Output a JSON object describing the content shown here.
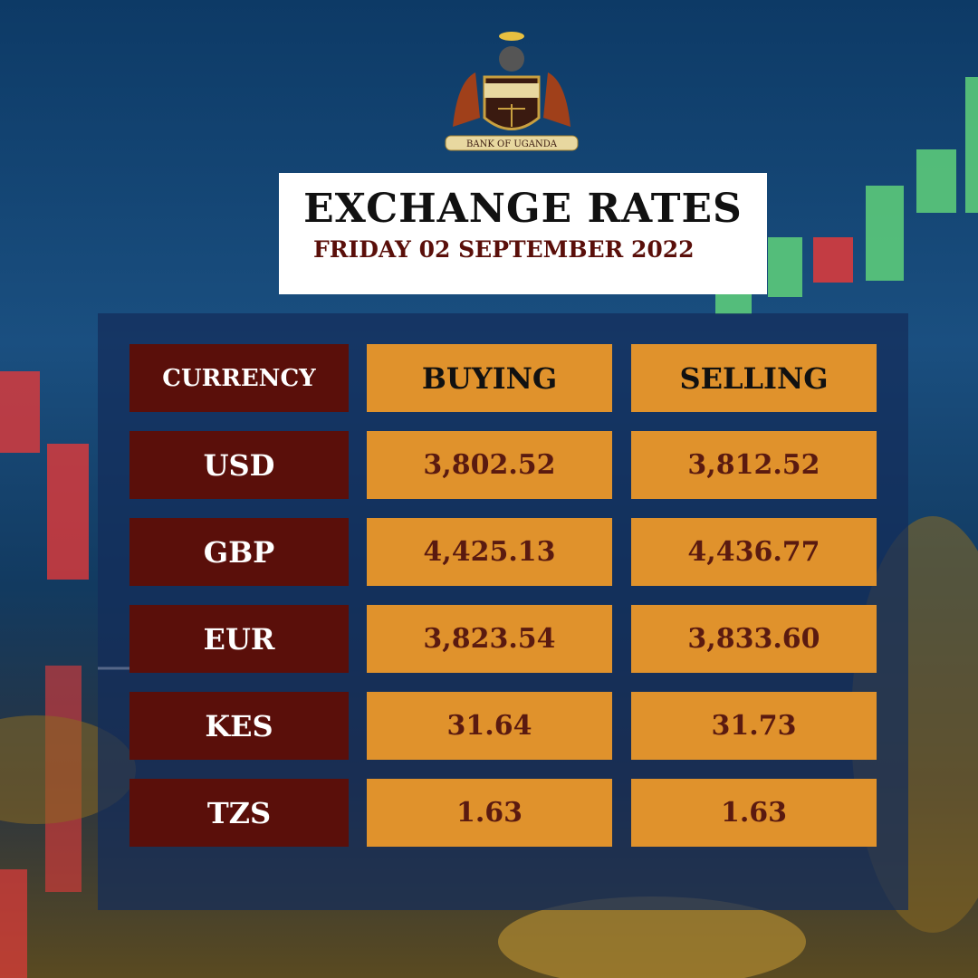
{
  "logo": {
    "caption": "BANK OF UGANDA"
  },
  "header": {
    "title": "EXCHANGE RATES",
    "date": "FRIDAY 02 SEPTEMBER 2022"
  },
  "table": {
    "headers": [
      "CURRENCY",
      "BUYING",
      "SELLING"
    ],
    "rows": [
      [
        "USD",
        "3,802.52",
        "3,812.52"
      ],
      [
        "GBP",
        "4,425.13",
        "4,436.77"
      ],
      [
        "EUR",
        "3,823.54",
        "3,833.60"
      ],
      [
        "KES",
        "31.64",
        "31.73"
      ],
      [
        "TZS",
        "1.63",
        "1.63"
      ]
    ]
  }
}
